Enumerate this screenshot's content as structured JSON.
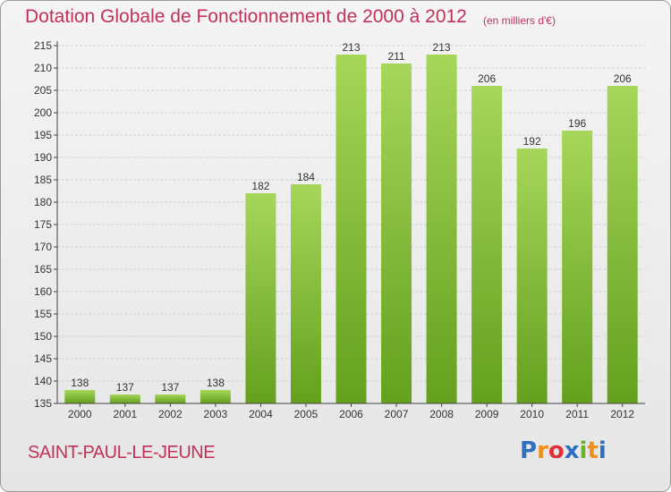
{
  "header": {
    "title": "Dotation Globale de Fonctionnement de 2000 à 2012",
    "unit": "(en milliers d'€)"
  },
  "footer": {
    "commune": "SAINT-PAUL-LE-JEUNE",
    "logo": "Proxiti"
  },
  "colors": {
    "title": "#c0325a",
    "bar_light": "#a6d65a",
    "bar_dark": "#64a01e",
    "axis": "#444444",
    "grid": "#d2d2d2"
  },
  "chart_data": {
    "type": "bar",
    "categories": [
      "2000",
      "2001",
      "2002",
      "2003",
      "2004",
      "2005",
      "2006",
      "2007",
      "2008",
      "2009",
      "2010",
      "2011",
      "2012"
    ],
    "values": [
      138,
      137,
      137,
      138,
      182,
      184,
      213,
      211,
      213,
      206,
      192,
      196,
      206
    ],
    "ylim": [
      135,
      215
    ],
    "yticks": [
      135,
      140,
      145,
      150,
      155,
      160,
      165,
      170,
      175,
      180,
      185,
      190,
      195,
      200,
      205,
      210,
      215
    ],
    "grid": true
  }
}
